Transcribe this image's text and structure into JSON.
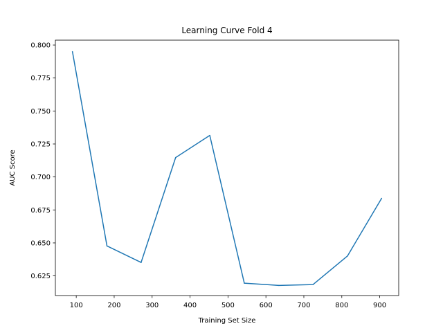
{
  "chart_data": {
    "type": "line",
    "title": "Learning Curve Fold 4",
    "xlabel": "Training Set Size",
    "ylabel": "AUC Score",
    "xlim": [
      45,
      950
    ],
    "ylim": [
      0.6101,
      0.8037
    ],
    "xticks": [
      100,
      200,
      300,
      400,
      500,
      600,
      700,
      800,
      900
    ],
    "xtick_labels": [
      "100",
      "200",
      "300",
      "400",
      "500",
      "600",
      "700",
      "800",
      "900"
    ],
    "yticks": [
      0.625,
      0.65,
      0.675,
      0.7,
      0.725,
      0.75,
      0.775,
      0.8
    ],
    "ytick_labels": [
      "0.625",
      "0.650",
      "0.675",
      "0.700",
      "0.725",
      "0.750",
      "0.775",
      "0.800"
    ],
    "grid": false,
    "series": [
      {
        "color": "#1f77b4",
        "x": [
          90,
          181,
          271,
          362,
          452,
          543,
          634,
          724,
          815,
          905
        ],
        "y": [
          0.795,
          0.6477,
          0.6352,
          0.7147,
          0.7315,
          0.6195,
          0.6178,
          0.6184,
          0.6401,
          0.6838
        ]
      }
    ]
  }
}
